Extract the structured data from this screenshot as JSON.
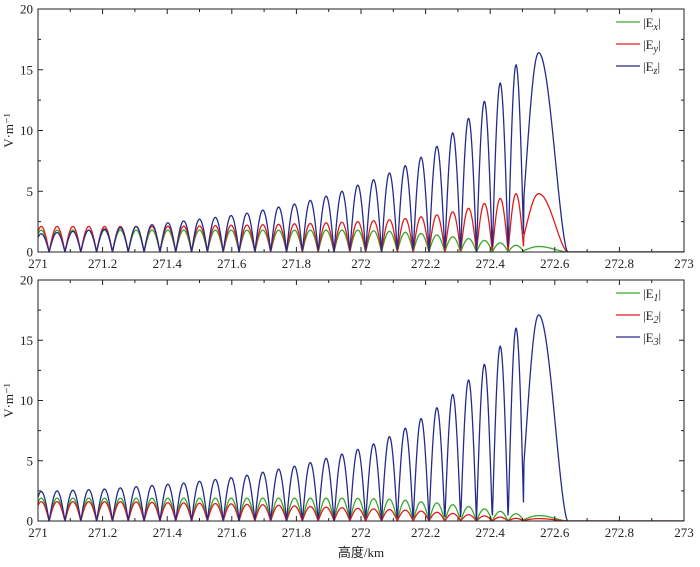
{
  "chart_data": [
    {
      "type": "line",
      "panel": "top",
      "x_axis": {
        "range": [
          271,
          273
        ],
        "ticks": [
          "271",
          "271.2",
          "271.4",
          "271.6",
          "271.8",
          "272",
          "272.2",
          "272.4",
          "272.6",
          "272.8",
          "273"
        ]
      },
      "y_axis": {
        "label": "V·m⁻¹",
        "range": [
          0,
          20
        ],
        "ticks": [
          "0",
          "5",
          "10",
          "15",
          "20"
        ]
      },
      "legend": {
        "position": "top-right"
      },
      "series": [
        {
          "name": "|Ex|",
          "label_main": "|E",
          "label_sub": "x",
          "color": "#3aa829",
          "peak_x": [
            271.01,
            271.059,
            271.108,
            271.157,
            271.206,
            271.255,
            271.304,
            271.353,
            271.402,
            271.451,
            271.5,
            271.549,
            271.598,
            271.647,
            271.696,
            271.745,
            271.794,
            271.843,
            271.892,
            271.941,
            271.99,
            272.039,
            272.088,
            272.137,
            272.186,
            272.235,
            272.284,
            272.333,
            272.382,
            272.431,
            272.48,
            272.55
          ],
          "peak_y": [
            1.8,
            1.8,
            1.8,
            1.8,
            1.8,
            1.8,
            1.8,
            1.8,
            1.8,
            1.8,
            1.8,
            1.8,
            1.8,
            1.8,
            1.8,
            1.8,
            1.8,
            1.8,
            1.8,
            1.8,
            1.8,
            1.75,
            1.7,
            1.62,
            1.52,
            1.4,
            1.25,
            1.1,
            0.95,
            0.75,
            0.55,
            0.45
          ]
        },
        {
          "name": "|Ey|",
          "label_main": "|E",
          "label_sub": "y",
          "color": "#e01c1c",
          "peak_x": [
            271.01,
            271.059,
            271.108,
            271.157,
            271.206,
            271.255,
            271.304,
            271.353,
            271.402,
            271.451,
            271.5,
            271.549,
            271.598,
            271.647,
            271.696,
            271.745,
            271.794,
            271.843,
            271.892,
            271.941,
            271.99,
            272.039,
            272.088,
            272.137,
            272.186,
            272.235,
            272.284,
            272.333,
            272.382,
            272.431,
            272.48,
            272.55
          ],
          "peak_y": [
            2.1,
            2.1,
            2.1,
            2.1,
            2.1,
            2.1,
            2.1,
            2.1,
            2.12,
            2.13,
            2.15,
            2.17,
            2.2,
            2.22,
            2.25,
            2.28,
            2.32,
            2.35,
            2.4,
            2.45,
            2.5,
            2.58,
            2.65,
            2.75,
            2.9,
            3.05,
            3.3,
            3.6,
            4.0,
            4.4,
            4.8,
            4.8
          ]
        },
        {
          "name": "|Ez|",
          "label_main": "|E",
          "label_sub": "z",
          "color": "#262b8a",
          "peak_x": [
            271.01,
            271.059,
            271.108,
            271.157,
            271.206,
            271.255,
            271.304,
            271.353,
            271.402,
            271.451,
            271.5,
            271.549,
            271.598,
            271.647,
            271.696,
            271.745,
            271.794,
            271.843,
            271.892,
            271.941,
            271.99,
            272.039,
            272.088,
            272.137,
            272.186,
            272.235,
            272.284,
            272.333,
            272.382,
            272.431,
            272.48,
            272.55
          ],
          "peak_y": [
            1.5,
            1.6,
            1.7,
            1.8,
            1.9,
            2.0,
            2.1,
            2.25,
            2.4,
            2.55,
            2.7,
            2.85,
            3.0,
            3.2,
            3.45,
            3.7,
            3.95,
            4.25,
            4.6,
            5.0,
            5.5,
            5.95,
            6.5,
            7.1,
            7.8,
            8.7,
            9.8,
            11.0,
            12.4,
            13.9,
            15.4,
            16.4
          ]
        }
      ]
    },
    {
      "type": "line",
      "panel": "bottom",
      "x_axis": {
        "label": "高度/km",
        "range": [
          271,
          273
        ],
        "ticks": [
          "271",
          "271.2",
          "271.4",
          "271.6",
          "271.8",
          "272",
          "272.2",
          "272.4",
          "272.6",
          "272.8",
          "273"
        ]
      },
      "y_axis": {
        "label": "V·m⁻¹",
        "range": [
          0,
          20
        ],
        "ticks": [
          "0",
          "5",
          "10",
          "15",
          "20"
        ]
      },
      "legend": {
        "position": "top-right"
      },
      "series": [
        {
          "name": "|E1|",
          "label_main": "|E",
          "label_sub": "1",
          "color": "#3aa829",
          "peak_x": [
            271.01,
            271.059,
            271.108,
            271.157,
            271.206,
            271.255,
            271.304,
            271.353,
            271.402,
            271.451,
            271.5,
            271.549,
            271.598,
            271.647,
            271.696,
            271.745,
            271.794,
            271.843,
            271.892,
            271.941,
            271.99,
            272.039,
            272.088,
            272.137,
            272.186,
            272.235,
            272.284,
            272.333,
            272.382,
            272.431,
            272.48,
            272.55
          ],
          "peak_y": [
            1.9,
            1.9,
            1.9,
            1.9,
            1.9,
            1.9,
            1.9,
            1.9,
            1.9,
            1.9,
            1.9,
            1.9,
            1.9,
            1.9,
            1.9,
            1.9,
            1.9,
            1.9,
            1.9,
            1.9,
            1.88,
            1.85,
            1.8,
            1.72,
            1.6,
            1.5,
            1.35,
            1.2,
            1.0,
            0.8,
            0.6,
            0.45
          ]
        },
        {
          "name": "|E2|",
          "label_main": "|E",
          "label_sub": "2",
          "color": "#e01c1c",
          "peak_x": [
            271.01,
            271.059,
            271.108,
            271.157,
            271.206,
            271.255,
            271.304,
            271.353,
            271.402,
            271.451,
            271.5,
            271.549,
            271.598,
            271.647,
            271.696,
            271.745,
            271.794,
            271.843,
            271.892,
            271.941,
            271.99,
            272.039,
            272.088,
            272.137,
            272.186,
            272.235,
            272.284,
            272.333,
            272.382,
            272.431,
            272.48,
            272.55
          ],
          "peak_y": [
            1.6,
            1.6,
            1.6,
            1.6,
            1.6,
            1.6,
            1.58,
            1.55,
            1.52,
            1.5,
            1.48,
            1.45,
            1.42,
            1.38,
            1.35,
            1.3,
            1.25,
            1.2,
            1.15,
            1.1,
            1.05,
            1.0,
            0.95,
            0.9,
            0.82,
            0.72,
            0.62,
            0.52,
            0.42,
            0.32,
            0.22,
            0.2
          ]
        },
        {
          "name": "|E3|",
          "label_main": "|E",
          "label_sub": "3",
          "color": "#262b8a",
          "peak_x": [
            271.01,
            271.059,
            271.108,
            271.157,
            271.206,
            271.255,
            271.304,
            271.353,
            271.402,
            271.451,
            271.5,
            271.549,
            271.598,
            271.647,
            271.696,
            271.745,
            271.794,
            271.843,
            271.892,
            271.941,
            271.99,
            272.039,
            272.088,
            272.137,
            272.186,
            272.235,
            272.284,
            272.333,
            272.382,
            272.431,
            272.48,
            272.55
          ],
          "peak_y": [
            2.45,
            2.5,
            2.55,
            2.6,
            2.65,
            2.75,
            2.85,
            2.95,
            3.05,
            3.15,
            3.3,
            3.45,
            3.6,
            3.8,
            4.05,
            4.3,
            4.55,
            4.85,
            5.2,
            5.55,
            5.95,
            6.4,
            7.0,
            7.7,
            8.5,
            9.4,
            10.5,
            11.7,
            13.0,
            14.5,
            16.0,
            17.1
          ]
        }
      ]
    }
  ]
}
